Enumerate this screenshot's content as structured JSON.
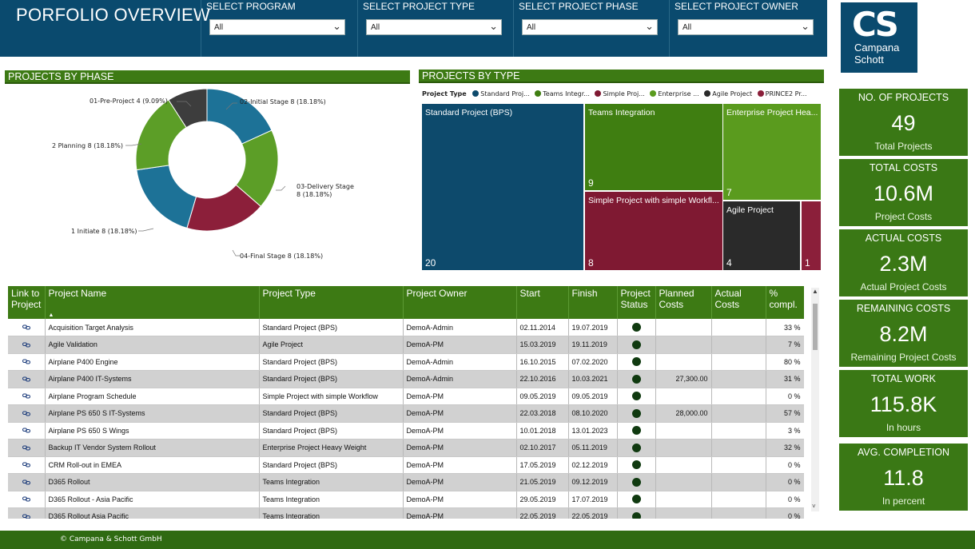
{
  "header": {
    "title": "PORFOLIO OVERVIEW",
    "slicers": [
      {
        "label": "SELECT PROGRAM",
        "value": "All"
      },
      {
        "label": "SELECT PROJECT TYPE",
        "value": "All"
      },
      {
        "label": "SELECT PROJECT PHASE",
        "value": "All"
      },
      {
        "label": "SELECT PROJECT OWNER",
        "value": "All"
      }
    ]
  },
  "logo": {
    "mark": "CS",
    "line1": "Campana",
    "line2": "Schott"
  },
  "phase_chart": {
    "title": "PROJECTS BY PHASE",
    "labels": [
      "01-Pre-Project 4 (9.09%)",
      "02-Initial Stage 8 (18.18%)",
      "03-Delivery Stage",
      "8 (18.18%)",
      "04-Final Stage 8 (18.18%)",
      "1 Initiate 8 (18.18%)",
      "2 Planning 8 (18.18%)"
    ]
  },
  "chart_data": {
    "type": "pie",
    "title": "PROJECTS BY PHASE",
    "categories": [
      "01-Pre-Project",
      "02-Initial Stage",
      "03-Delivery Stage",
      "04-Final Stage",
      "1 Initiate",
      "2 Planning"
    ],
    "values": [
      4,
      8,
      8,
      8,
      8,
      8
    ],
    "percent": [
      9.09,
      18.18,
      18.18,
      18.18,
      18.18,
      18.18
    ],
    "colors": [
      "#3d3d3d",
      "#1d7297",
      "#5c9e27",
      "#8c1f3a",
      "#1d7297",
      "#5c9e27"
    ],
    "hole": true
  },
  "type_chart": {
    "title": "PROJECTS BY TYPE",
    "legend_title": "Project Type",
    "legend": [
      {
        "label": "Standard Proj...",
        "color": "#0d4a6c"
      },
      {
        "label": "Teams Integr...",
        "color": "#3f7e11"
      },
      {
        "label": "Simple Proj...",
        "color": "#7f1932"
      },
      {
        "label": "Enterprise ...",
        "color": "#5a9b1e"
      },
      {
        "label": "Agile Project",
        "color": "#2a2a2a"
      },
      {
        "label": "PRINCE2 Pr...",
        "color": "#8b1f3a"
      }
    ],
    "tiles": [
      {
        "name": "Standard Project (BPS)",
        "value": "20",
        "color": "#0d4a6c"
      },
      {
        "name": "Teams Integration",
        "value": "9",
        "color": "#3f7e11"
      },
      {
        "name": "Enterprise Project Hea...",
        "value": "7",
        "color": "#5a9b1e"
      },
      {
        "name": "Simple Project with simple Workfl...",
        "value": "8",
        "color": "#7f1932"
      },
      {
        "name": "Agile Project",
        "value": "4",
        "color": "#2a2a2a"
      },
      {
        "name": "",
        "value": "1",
        "color": "#8b1f3a"
      }
    ]
  },
  "kpis": [
    {
      "title": "NO. OF PROJECTS",
      "value": "49",
      "sub": "Total Projects"
    },
    {
      "title": "TOTAL COSTS",
      "value": "10.6M",
      "sub": "Project Costs"
    },
    {
      "title": "ACTUAL COSTS",
      "value": "2.3M",
      "sub": "Actual Project Costs"
    },
    {
      "title": "REMAINING COSTS",
      "value": "8.2M",
      "sub": "Remaining Project Costs"
    },
    {
      "title": "TOTAL WORK",
      "value": "115.8K",
      "sub": "In hours"
    },
    {
      "title": "AVG. COMPLETION",
      "value": "11.8",
      "sub": "In percent"
    }
  ],
  "table": {
    "headers": [
      "Link to Project",
      "Project Name",
      "Project Type",
      "Project Owner",
      "Start",
      "Finish",
      "Project Status",
      "Planned Costs",
      "Actual Costs",
      "% compl."
    ],
    "sort_indicator": "▲",
    "rows": [
      {
        "name": "Acquisition Target Analysis",
        "type": "Standard Project (BPS)",
        "owner": "DemoA-Admin",
        "start": "02.11.2014",
        "finish": "19.07.2019",
        "planned": "",
        "actual": "",
        "compl": "33 %"
      },
      {
        "name": "Agile Validation",
        "type": "Agile Project",
        "owner": "DemoA-PM",
        "start": "15.03.2019",
        "finish": "19.11.2019",
        "planned": "",
        "actual": "",
        "compl": "7 %"
      },
      {
        "name": "Airplane P400 Engine",
        "type": "Standard Project (BPS)",
        "owner": "DemoA-Admin",
        "start": "16.10.2015",
        "finish": "07.02.2020",
        "planned": "",
        "actual": "",
        "compl": "80 %"
      },
      {
        "name": "Airplane P400 IT-Systems",
        "type": "Standard Project (BPS)",
        "owner": "DemoA-Admin",
        "start": "22.10.2016",
        "finish": "10.03.2021",
        "planned": "27,300.00",
        "actual": "",
        "compl": "31 %"
      },
      {
        "name": "Airplane Program Schedule",
        "type": "Simple Project with simple Workflow",
        "owner": "DemoA-PM",
        "start": "09.05.2019",
        "finish": "09.05.2019",
        "planned": "",
        "actual": "",
        "compl": "0 %"
      },
      {
        "name": "Airplane PS 650 S IT-Systems",
        "type": "Standard Project (BPS)",
        "owner": "DemoA-PM",
        "start": "22.03.2018",
        "finish": "08.10.2020",
        "planned": "28,000.00",
        "actual": "",
        "compl": "57 %"
      },
      {
        "name": "Airplane PS 650 S Wings",
        "type": "Standard Project (BPS)",
        "owner": "DemoA-PM",
        "start": "10.01.2018",
        "finish": "13.01.2023",
        "planned": "",
        "actual": "",
        "compl": "3 %"
      },
      {
        "name": "Backup IT Vendor System Rollout",
        "type": "Enterprise Project Heavy Weight",
        "owner": "DemoA-PM",
        "start": "02.10.2017",
        "finish": "05.11.2019",
        "planned": "",
        "actual": "",
        "compl": "32 %"
      },
      {
        "name": "CRM Roll-out in EMEA",
        "type": "Standard Project (BPS)",
        "owner": "DemoA-PM",
        "start": "17.05.2019",
        "finish": "02.12.2019",
        "planned": "",
        "actual": "",
        "compl": "0 %"
      },
      {
        "name": "D365 Rollout",
        "type": "Teams Integration",
        "owner": "DemoA-PM",
        "start": "21.05.2019",
        "finish": "09.12.2019",
        "planned": "",
        "actual": "",
        "compl": "0 %"
      },
      {
        "name": "D365 Rollout - Asia Pacific",
        "type": "Teams Integration",
        "owner": "DemoA-PM",
        "start": "29.05.2019",
        "finish": "17.07.2019",
        "planned": "",
        "actual": "",
        "compl": "0 %"
      },
      {
        "name": "D365 Rollout Asia Pacific",
        "type": "Teams Integration",
        "owner": "DemoA-PM",
        "start": "22.05.2019",
        "finish": "22.05.2019",
        "planned": "",
        "actual": "",
        "compl": "0 %"
      }
    ]
  },
  "scrollbar": {
    "up": "▲",
    "down": "˅"
  },
  "footer": {
    "text": "© Campana & Schott GmbH"
  }
}
